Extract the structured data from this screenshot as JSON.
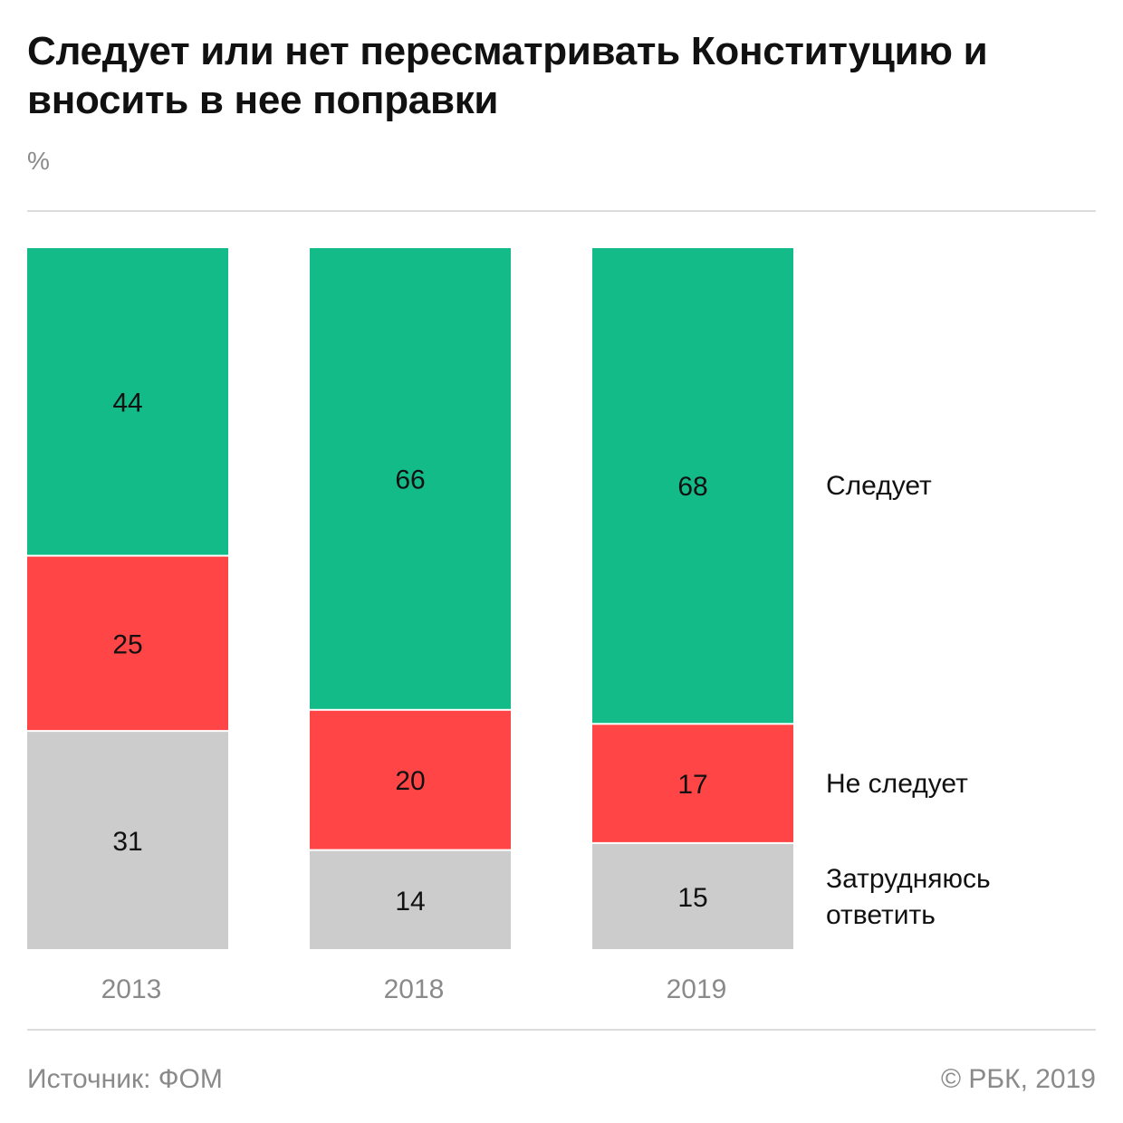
{
  "chart_data": {
    "type": "bar",
    "stacked": true,
    "title": "Следует или нет пересматривать Конституцию и вносить в нее поправки",
    "unit_label": "%",
    "categories": [
      "2013",
      "2018",
      "2019"
    ],
    "series": [
      {
        "name": "Следует",
        "values": [
          44,
          66,
          68
        ],
        "color": "#13bb88"
      },
      {
        "name": "Не следует",
        "values": [
          25,
          20,
          17
        ],
        "color": "#ff4545"
      },
      {
        "name": "Затрудняюсь ответить",
        "values": [
          31,
          14,
          15
        ],
        "color": "#cccccc"
      }
    ],
    "ylim": [
      0,
      100
    ],
    "grid": false,
    "legend": "right"
  },
  "footer": {
    "source": "Источник: ФОМ",
    "copyright": "© РБК, 2019"
  }
}
